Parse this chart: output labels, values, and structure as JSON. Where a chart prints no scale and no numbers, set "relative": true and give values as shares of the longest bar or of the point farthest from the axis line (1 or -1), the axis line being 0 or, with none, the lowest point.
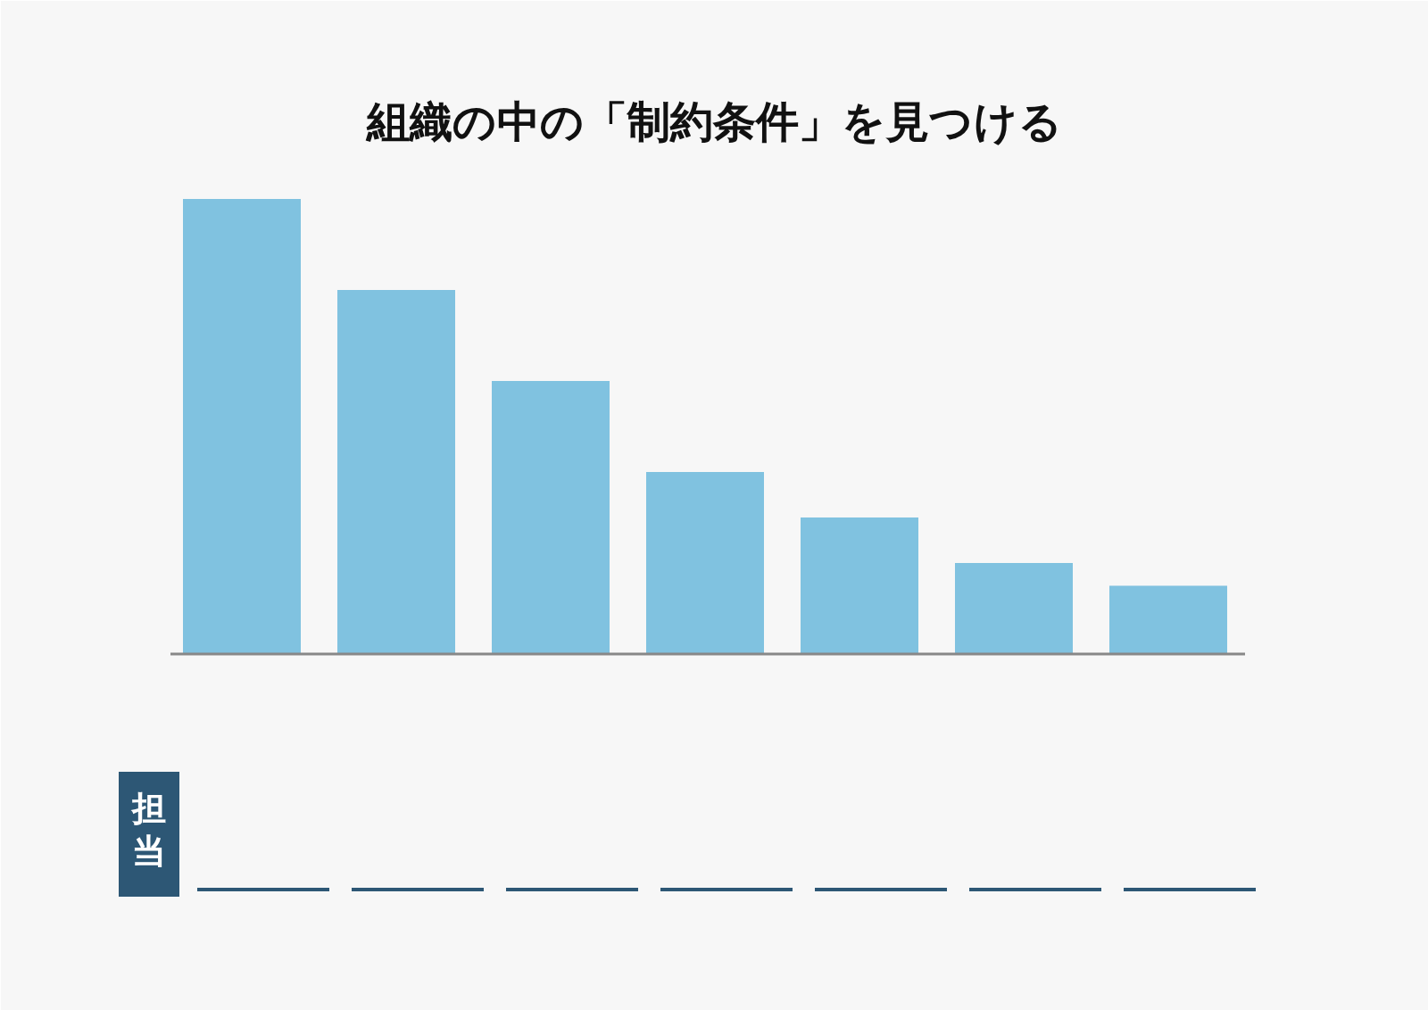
{
  "chart_data": {
    "type": "bar",
    "title": "組織の中の「制約条件」を見つける",
    "relative": true,
    "categories": [
      null,
      null,
      null,
      null,
      null,
      null,
      null
    ],
    "values": [
      1,
      0.8,
      0.6,
      0.4,
      0.3,
      0.2,
      0.15
    ],
    "color": "#80c2e0",
    "grid": false,
    "annotations": [
      "担当"
    ]
  }
}
